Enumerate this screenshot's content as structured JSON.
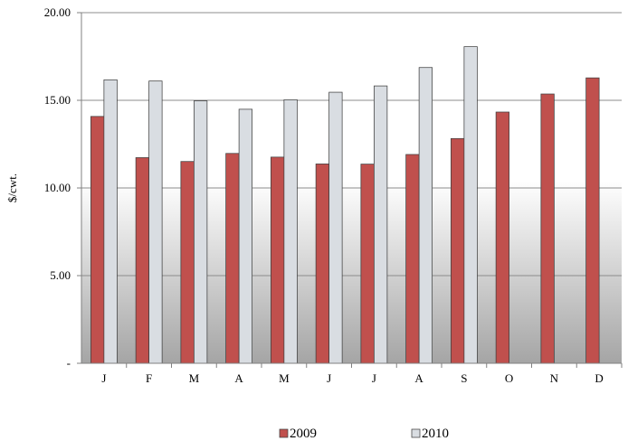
{
  "chart_data": {
    "type": "bar",
    "title": "",
    "xlabel": "",
    "ylabel": "$/cwt.",
    "categories": [
      "J",
      "F",
      "M",
      "A",
      "M",
      "J",
      "J",
      "A",
      "S",
      "O",
      "N",
      "D"
    ],
    "series": [
      {
        "name": "2009",
        "color": "#c0504d",
        "values": [
          14.08,
          11.73,
          11.51,
          11.97,
          11.76,
          11.37,
          11.36,
          11.91,
          12.82,
          14.33,
          15.36,
          16.28
        ]
      },
      {
        "name": "2010",
        "color": "#d9dde2",
        "values": [
          16.17,
          16.1,
          14.97,
          14.49,
          15.03,
          15.46,
          15.82,
          16.87,
          18.06,
          null,
          null,
          null
        ]
      }
    ],
    "ylim": [
      0,
      20
    ],
    "yticks": [
      0,
      5,
      10,
      15,
      20
    ],
    "ytick_labels": [
      "-",
      "5.00",
      "10.00",
      "15.00",
      "20.00"
    ],
    "grid": true,
    "legend_position": "bottom"
  }
}
